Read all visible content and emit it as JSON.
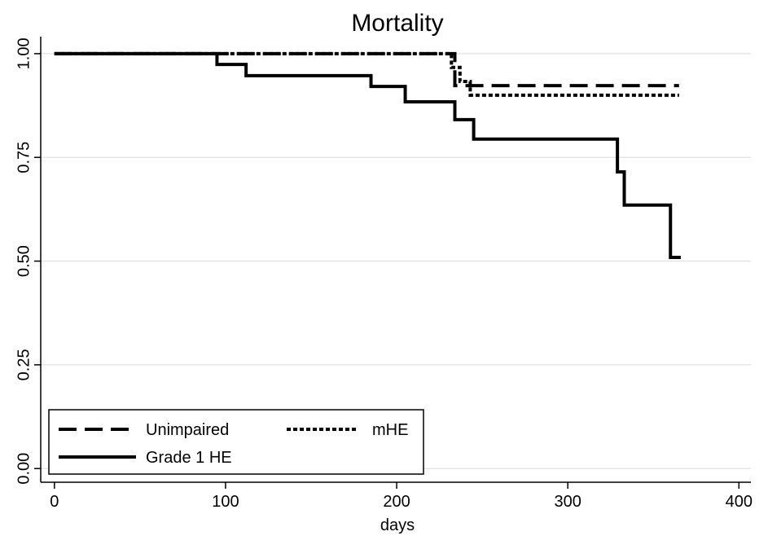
{
  "chart_data": {
    "type": "step",
    "title": "Mortality",
    "x_label": "days",
    "series": [
      {
        "name": "Unimpaired",
        "color": "#000000",
        "style": "dashed",
        "x": [
          0,
          234,
          365
        ],
        "values": [
          1.0,
          0.923,
          0.923
        ]
      },
      {
        "name": "mHE",
        "color": "#000000",
        "style": "dotted",
        "x": [
          0,
          232,
          237,
          243,
          365
        ],
        "values": [
          1.0,
          0.967,
          0.933,
          0.9,
          0.9
        ]
      },
      {
        "name": "Grade 1 HE",
        "color": "#000000",
        "style": "solid",
        "x": [
          0,
          95,
          112,
          185,
          205,
          234,
          245,
          329,
          333,
          360,
          366
        ],
        "values": [
          1.0,
          0.974,
          0.947,
          0.921,
          0.884,
          0.841,
          0.794,
          0.715,
          0.635,
          0.509,
          0.509
        ]
      }
    ],
    "xlim": [
      -8,
      407
    ],
    "xticks": [
      0,
      100,
      200,
      300,
      400
    ],
    "ylim": [
      -0.033,
      1.041
    ],
    "yticks": [
      {
        "value": 0,
        "label": "0.00"
      },
      0.25,
      {
        "value": 0.5,
        "label": "0.50"
      },
      0.75,
      {
        "value": 1,
        "label": "1.00"
      }
    ],
    "grid": true,
    "legend": "lower left"
  }
}
